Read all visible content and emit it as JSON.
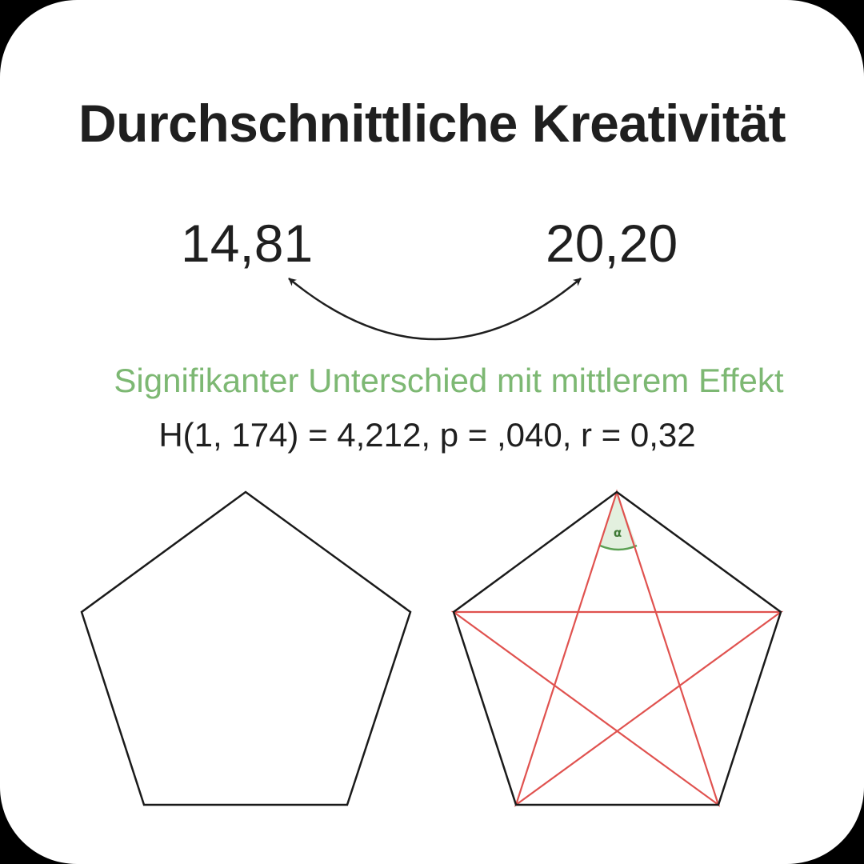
{
  "title": "Durchschnittliche Kreativität",
  "comparison": {
    "left_value": "14,81",
    "right_value": "20,20"
  },
  "result": {
    "verdict": "Signifikanter Unterschied mit mittlerem Effekt",
    "statistics": "H(1, 174) = 4,212, p = ,040, r = 0,32"
  },
  "figures": {
    "angle_label": "α",
    "outline_color": "#1a1a1a",
    "star_color": "#e0524f",
    "angle_fill": "#e3f0df",
    "angle_arc_color": "#5aa052"
  }
}
